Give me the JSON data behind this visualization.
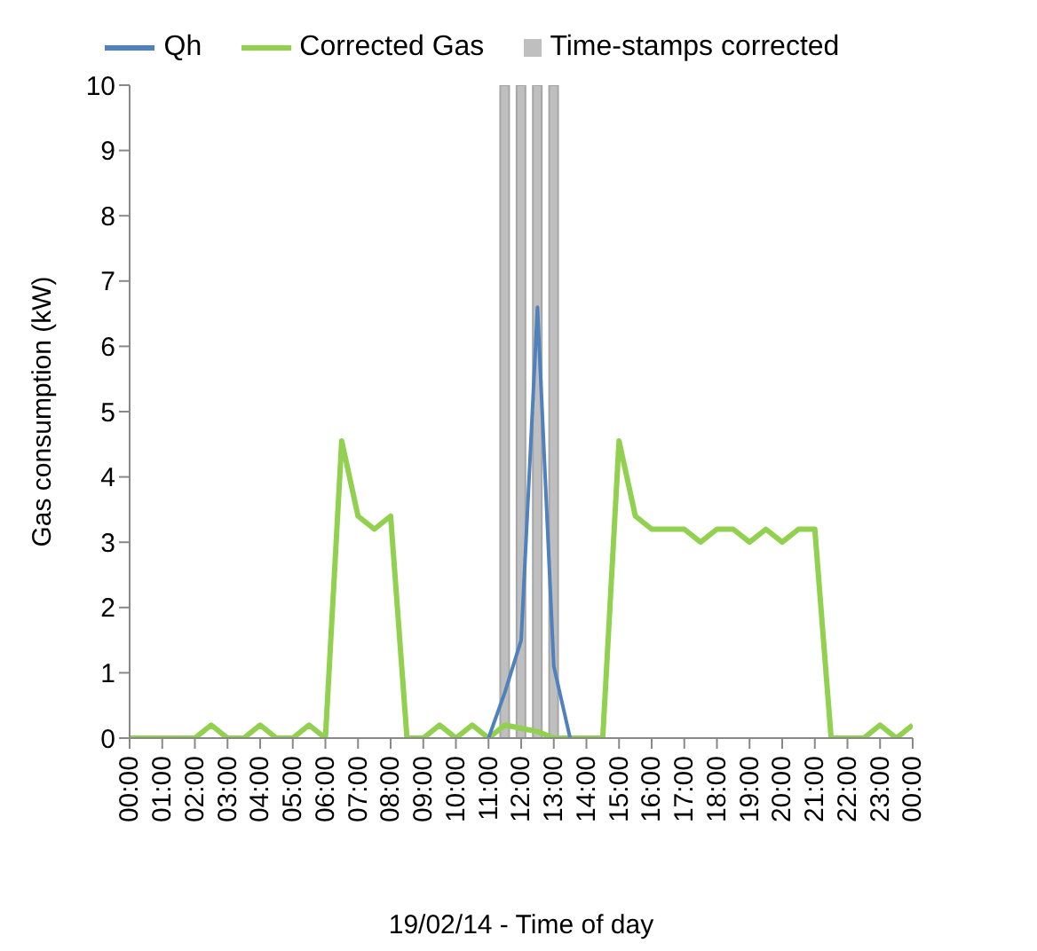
{
  "chart_data": {
    "type": "line",
    "xlabel": "19/02/14 - Time of day",
    "ylabel": "Gas consumption (kW)",
    "x": [
      0,
      0.5,
      1,
      1.5,
      2,
      2.5,
      3,
      3.5,
      4,
      4.5,
      5,
      5.5,
      6,
      6.5,
      7,
      7.5,
      8,
      8.5,
      9,
      9.5,
      10,
      10.5,
      11,
      11.5,
      12,
      12.5,
      13,
      13.5,
      14,
      14.5,
      15,
      15.5,
      16,
      16.5,
      17,
      17.5,
      18,
      18.5,
      19,
      19.5,
      20,
      20.5,
      21,
      21.5,
      22,
      22.5,
      23,
      23.5,
      24
    ],
    "series": [
      {
        "name": "Qh",
        "color": "#4f81bd",
        "values": [
          null,
          null,
          null,
          null,
          null,
          null,
          null,
          null,
          null,
          null,
          null,
          null,
          null,
          null,
          null,
          null,
          null,
          null,
          null,
          null,
          null,
          null,
          0,
          0.7,
          1.5,
          6.6,
          1.1,
          0,
          null,
          null,
          null,
          null,
          null,
          null,
          null,
          null,
          null,
          null,
          null,
          null,
          null,
          null,
          null,
          null,
          null,
          null,
          null,
          null,
          null
        ]
      },
      {
        "name": "Corrected Gas",
        "color": "#92d050",
        "values": [
          0,
          0,
          0,
          0,
          0,
          0.2,
          0,
          0,
          0.2,
          0,
          0,
          0.2,
          0,
          4.55,
          3.4,
          3.2,
          3.4,
          0,
          0,
          0.2,
          0,
          0.2,
          0,
          0.2,
          0.15,
          0.1,
          0,
          0,
          0,
          0,
          4.55,
          3.4,
          3.2,
          3.2,
          3.2,
          3.0,
          3.2,
          3.2,
          3.0,
          3.2,
          3.0,
          3.2,
          3.2,
          0,
          0,
          0,
          0.2,
          0,
          0.2
        ]
      },
      {
        "name": "Time-stamps corrected",
        "type": "bar",
        "color": "#bfbfbf",
        "x": [
          11.5,
          12,
          12.5,
          13
        ],
        "values": [
          10,
          10,
          10,
          10
        ]
      }
    ],
    "xlim": [
      0,
      24
    ],
    "xticks": [
      {
        "value": 0,
        "label": "00:00"
      },
      {
        "value": 1,
        "label": "01:00"
      },
      {
        "value": 2,
        "label": "02:00"
      },
      {
        "value": 3,
        "label": "03:00"
      },
      {
        "value": 4,
        "label": "04:00"
      },
      {
        "value": 5,
        "label": "05:00"
      },
      {
        "value": 6,
        "label": "06:00"
      },
      {
        "value": 7,
        "label": "07:00"
      },
      {
        "value": 8,
        "label": "08:00"
      },
      {
        "value": 9,
        "label": "09:00"
      },
      {
        "value": 10,
        "label": "10:00"
      },
      {
        "value": 11,
        "label": "11:00"
      },
      {
        "value": 12,
        "label": "12:00"
      },
      {
        "value": 13,
        "label": "13:00"
      },
      {
        "value": 14,
        "label": "14:00"
      },
      {
        "value": 15,
        "label": "15:00"
      },
      {
        "value": 16,
        "label": "16:00"
      },
      {
        "value": 17,
        "label": "17:00"
      },
      {
        "value": 18,
        "label": "18:00"
      },
      {
        "value": 19,
        "label": "19:00"
      },
      {
        "value": 20,
        "label": "20:00"
      },
      {
        "value": 21,
        "label": "21:00"
      },
      {
        "value": 22,
        "label": "22:00"
      },
      {
        "value": 23,
        "label": "23:00"
      },
      {
        "value": 24,
        "label": "00:00"
      }
    ],
    "ylim": [
      0,
      10
    ],
    "yticks": [
      0,
      1,
      2,
      3,
      4,
      5,
      6,
      7,
      8,
      9,
      10
    ],
    "grid": false,
    "legend": "top",
    "marker": "none",
    "line_style": "solid"
  }
}
